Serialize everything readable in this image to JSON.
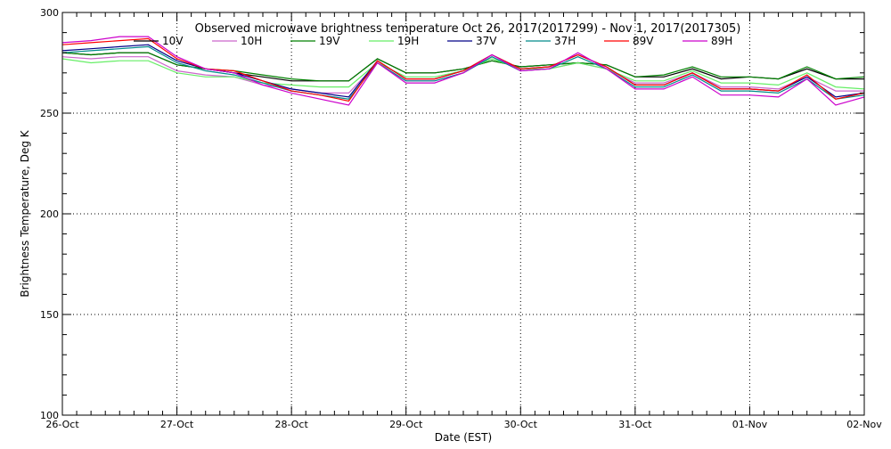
{
  "chart_data": {
    "type": "line",
    "title": "Observed microwave brightness temperature Oct 26, 2017(2017299) - Nov  1, 2017(2017305)",
    "xlabel": "Date (EST)",
    "ylabel": "Brightness Temperature, Deg K",
    "x_ticks": [
      "26-Oct",
      "27-Oct",
      "28-Oct",
      "29-Oct",
      "30-Oct",
      "31-Oct",
      "01-Nov",
      "02-Nov"
    ],
    "y_ticks": [
      "100",
      "150",
      "200",
      "250",
      "300"
    ],
    "xlim": [
      "2017-10-26",
      "2017-11-02"
    ],
    "ylim": [
      100,
      300
    ],
    "grid": true,
    "legend_position": "top",
    "x": [
      "2017-10-26 00:00",
      "2017-10-26 06:00",
      "2017-10-26 12:00",
      "2017-10-26 18:00",
      "2017-10-27 00:00",
      "2017-10-27 06:00",
      "2017-10-27 12:00",
      "2017-10-27 18:00",
      "2017-10-28 00:00",
      "2017-10-28 06:00",
      "2017-10-28 12:00",
      "2017-10-28 18:00",
      "2017-10-29 00:00",
      "2017-10-29 06:00",
      "2017-10-29 12:00",
      "2017-10-29 18:00",
      "2017-10-30 00:00",
      "2017-10-30 06:00",
      "2017-10-30 12:00",
      "2017-10-30 18:00",
      "2017-10-31 00:00",
      "2017-10-31 06:00",
      "2017-10-31 12:00",
      "2017-10-31 18:00",
      "2017-11-01 00:00",
      "2017-11-01 06:00",
      "2017-11-01 12:00",
      "2017-11-01 18:00",
      "2017-11-02 00:00"
    ],
    "series": [
      {
        "name": "10V",
        "color": "#000000",
        "values": [
          280,
          279,
          280,
          280,
          274,
          272,
          270,
          268,
          266,
          266,
          266,
          277,
          270,
          270,
          272,
          276,
          273,
          274,
          275,
          274,
          268,
          268,
          272,
          267,
          268,
          267,
          272,
          267,
          267
        ]
      },
      {
        "name": "10H",
        "color": "#cc66cc",
        "values": [
          278,
          277,
          278,
          278,
          271,
          269,
          268,
          264,
          262,
          260,
          260,
          275,
          266,
          266,
          270,
          278,
          271,
          272,
          275,
          272,
          265,
          265,
          270,
          263,
          263,
          262,
          268,
          261,
          261
        ]
      },
      {
        "name": "19V",
        "color": "#008000",
        "values": [
          280,
          279,
          280,
          280,
          274,
          272,
          271,
          269,
          267,
          266,
          266,
          277,
          270,
          270,
          272,
          276,
          273,
          274,
          275,
          274,
          268,
          269,
          273,
          268,
          268,
          267,
          273,
          267,
          268
        ]
      },
      {
        "name": "19H",
        "color": "#66ee66",
        "values": [
          277,
          275,
          276,
          276,
          270,
          268,
          268,
          265,
          264,
          263,
          263,
          275,
          268,
          268,
          271,
          277,
          272,
          272,
          275,
          272,
          266,
          266,
          271,
          265,
          265,
          264,
          270,
          263,
          262
        ]
      },
      {
        "name": "37V",
        "color": "#000088",
        "values": [
          281,
          282,
          283,
          284,
          276,
          272,
          270,
          266,
          262,
          260,
          258,
          276,
          267,
          267,
          271,
          279,
          272,
          273,
          279,
          273,
          264,
          264,
          270,
          262,
          262,
          261,
          268,
          258,
          260
        ]
      },
      {
        "name": "37H",
        "color": "#008b8b",
        "values": [
          280,
          281,
          282,
          283,
          275,
          271,
          269,
          265,
          261,
          259,
          257,
          275,
          266,
          266,
          270,
          278,
          271,
          272,
          278,
          272,
          263,
          263,
          269,
          261,
          261,
          260,
          267,
          257,
          259
        ]
      },
      {
        "name": "89V",
        "color": "#ff0000",
        "values": [
          284,
          285,
          286,
          287,
          277,
          272,
          271,
          266,
          261,
          259,
          256,
          276,
          267,
          267,
          271,
          279,
          272,
          273,
          279,
          273,
          264,
          264,
          270,
          262,
          262,
          261,
          269,
          257,
          260
        ]
      },
      {
        "name": "89H",
        "color": "#cc00cc",
        "values": [
          285,
          286,
          288,
          288,
          278,
          272,
          270,
          264,
          260,
          257,
          254,
          275,
          265,
          265,
          270,
          279,
          271,
          272,
          280,
          272,
          262,
          262,
          268,
          259,
          259,
          258,
          267,
          254,
          258
        ]
      }
    ]
  }
}
